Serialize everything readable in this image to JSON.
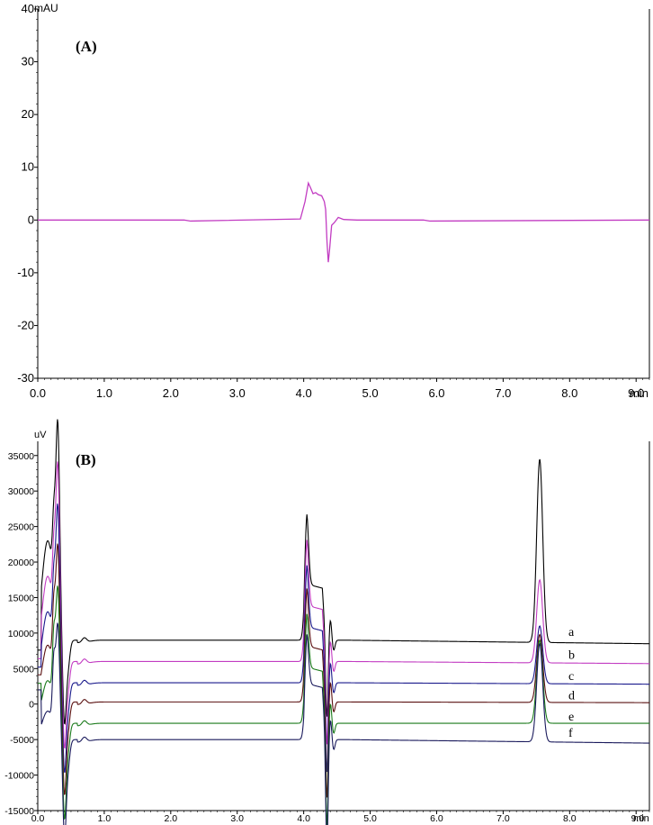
{
  "chart_data": [
    {
      "type": "line",
      "panel_label": "(A)",
      "ylabel": "mAU",
      "xlabel": "min",
      "xlim": [
        0,
        9.2
      ],
      "ylim": [
        -30,
        40
      ],
      "x_ticks": [
        "0.0",
        "1.0",
        "2.0",
        "3.0",
        "4.0",
        "5.0",
        "6.0",
        "7.0",
        "8.0",
        "9.0"
      ],
      "y_ticks": [
        "40",
        "30",
        "20",
        "10",
        "0",
        "-10",
        "-20",
        "-30"
      ],
      "series": [
        {
          "color": "#c23cc2",
          "x": [
            0,
            2.2,
            2.3,
            3.95,
            4.02,
            4.07,
            4.1,
            4.14,
            4.18,
            4.22,
            4.27,
            4.31,
            4.33,
            4.35,
            4.37,
            4.39,
            4.42,
            4.46,
            4.52,
            4.6,
            4.8,
            5.8,
            5.9,
            9.2
          ],
          "y": [
            0,
            0,
            -0.2,
            0.2,
            3.5,
            7.0,
            6.2,
            5.0,
            5.2,
            4.8,
            4.6,
            3.5,
            2.0,
            -4.0,
            -8.0,
            -5.5,
            -1.0,
            -0.5,
            0.5,
            0.1,
            0,
            0,
            -0.2,
            0
          ]
        }
      ]
    },
    {
      "type": "line",
      "panel_label": "(B)",
      "ylabel": "uV",
      "xlabel": "min",
      "xlim": [
        0,
        9.2
      ],
      "ylim": [
        -15000,
        37000
      ],
      "x_ticks": [
        "0.0",
        "1.0",
        "2.0",
        "3.0",
        "4.0",
        "5.0",
        "6.0",
        "7.0",
        "8.0",
        "9.0"
      ],
      "y_ticks": [
        "35000",
        "30000",
        "25000",
        "20000",
        "15000",
        "10000",
        "5000",
        "0",
        "-5000",
        "-10000",
        "-15000"
      ],
      "series": [
        {
          "name": "a",
          "color": "#000000",
          "baseline": 9000,
          "end": 8500,
          "peak": 34500
        },
        {
          "name": "b",
          "color": "#c23cc2",
          "baseline": 6000,
          "end": 5700,
          "peak": 17500
        },
        {
          "name": "c",
          "color": "#1a1a8c",
          "baseline": 3000,
          "end": 2800,
          "peak": 11000
        },
        {
          "name": "d",
          "color": "#5a1010",
          "baseline": 300,
          "end": 200,
          "peak": 9800
        },
        {
          "name": "e",
          "color": "#1a7a1a",
          "baseline": -2700,
          "end": -2700,
          "peak": 9000
        },
        {
          "name": "f",
          "color": "#1a1a5c",
          "baseline": -5000,
          "end": -5500,
          "peak": 8500
        }
      ]
    }
  ]
}
